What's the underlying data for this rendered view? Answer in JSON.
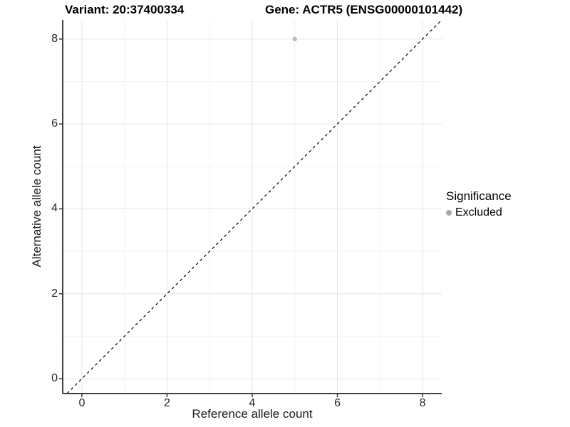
{
  "header": {
    "title_left": "Variant: 20:37400334",
    "title_right": "Gene: ACTR5 (ENSG00000101442)"
  },
  "chart_data": {
    "type": "scatter",
    "title": "Variant: 20:37400334   Gene: ACTR5 (ENSG00000101442)",
    "xlabel": "Reference allele count",
    "ylabel": "Alternative allele count",
    "xlim": [
      -0.45,
      8.45
    ],
    "ylim": [
      -0.35,
      8.45
    ],
    "x_major_ticks": [
      0,
      2,
      4,
      6,
      8
    ],
    "y_major_ticks": [
      0,
      2,
      4,
      6,
      8
    ],
    "x_minor_ticks": [
      1,
      3,
      5,
      7
    ],
    "y_minor_ticks": [
      1,
      3,
      5,
      7
    ],
    "grid": "major and minor, light grey on white",
    "points": [
      {
        "x": 5,
        "y": 8,
        "series": "Excluded"
      }
    ],
    "reference_line": {
      "kind": "identity y=x",
      "style": "dashed",
      "color": "#000000"
    },
    "legend": {
      "title": "Significance",
      "position": "right",
      "items": [
        {
          "label": "Excluded",
          "color": "#a9a9a9"
        }
      ]
    },
    "colors": {
      "point": "#a9a9a9",
      "point_opacity": 0.75,
      "grid_major": "#e6e6e6",
      "grid_minor": "#f3f3f3",
      "axis_line": "#404040",
      "tick_mark": "#333333"
    }
  }
}
